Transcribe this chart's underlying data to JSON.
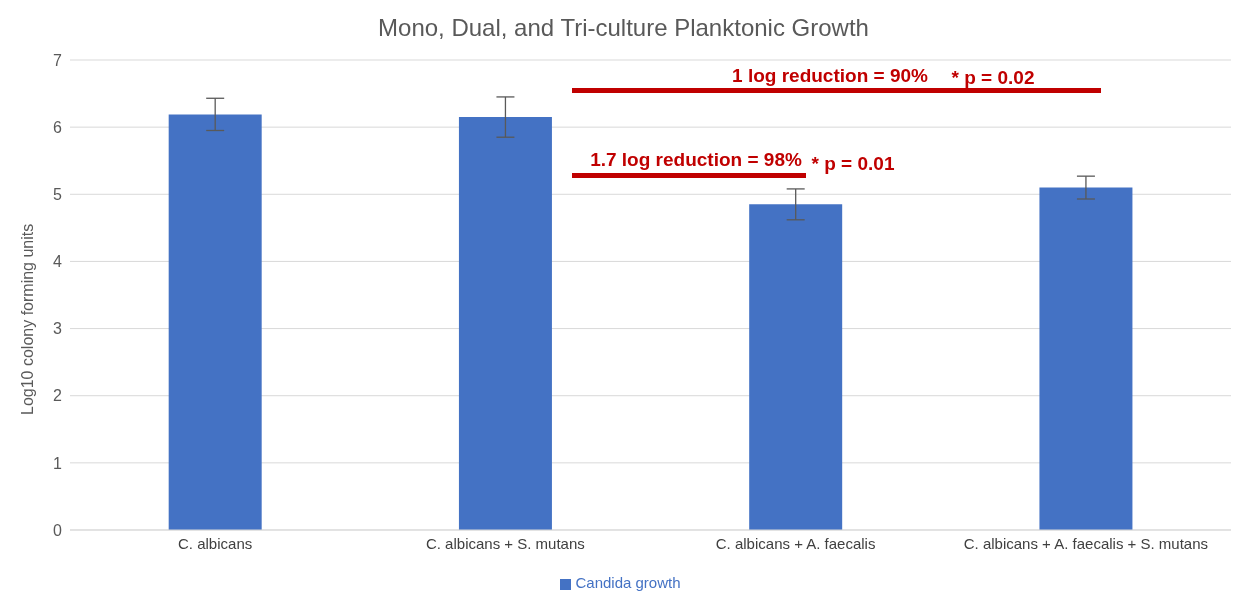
{
  "chart_data": {
    "type": "bar",
    "title": "Mono, Dual, and Tri-culture Planktonic Growth",
    "ylabel": "Log10 colony forming units",
    "categories": [
      "C. albicans",
      "C. albicans + S. mutans",
      "C. albicans + A. faecalis",
      "C. albicans + A. faecalis + S. mutans"
    ],
    "series": [
      {
        "name": "Candida growth",
        "color": "#4472c4",
        "values": [
          6.19,
          6.15,
          4.85,
          5.1
        ],
        "errors": [
          0.24,
          0.3,
          0.23,
          0.17
        ]
      }
    ],
    "ylim": [
      0,
      7
    ],
    "yticks": [
      0,
      1,
      2,
      3,
      4,
      5,
      6,
      7
    ],
    "grid": "y",
    "legend": "bottom",
    "annotations": [
      "1 log reduction = 90%",
      "* p = 0.02",
      "1.7 log reduction = 98%",
      "* p = 0.01"
    ]
  }
}
